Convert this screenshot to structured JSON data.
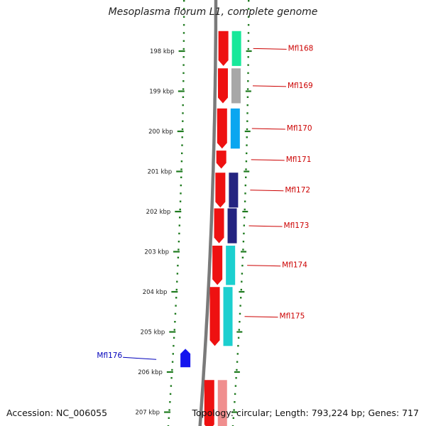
{
  "title": "Mesoplasma florum L1, complete genome",
  "footer": {
    "accession": "Accession: NC_006055",
    "summary": "Topology: circular; Length: 793,224 bp; Genes: 717"
  },
  "colors": {
    "backbone": "#7a7a7a",
    "tick": "#1e7a1e",
    "forward_gene": "#ee1111",
    "reverse_gene": "#1515ee",
    "label_forward": "#cc0000",
    "label_reverse": "#0000bb",
    "cog_green": "#17e89a",
    "cog_gray": "#a8a8a8",
    "cog_sky": "#0aa6f0",
    "cog_navy": "#242480",
    "cog_teal": "#1ccfcf",
    "cog_pink": "#f08e8e"
  },
  "scale": {
    "unit": "kbp",
    "tick_labels": [
      "198 kbp",
      "199 kbp",
      "200 kbp",
      "201 kbp",
      "202 kbp",
      "203 kbp",
      "204 kbp",
      "205 kbp",
      "206 kbp",
      "207 kbp"
    ],
    "tick_values": [
      198,
      199,
      200,
      201,
      202,
      203,
      204,
      205,
      206,
      207
    ]
  },
  "genes": [
    {
      "name": "Mfl168",
      "strand": "+",
      "start_kbp": 197.5,
      "end_kbp": 198.37,
      "cog": "cog_green"
    },
    {
      "name": "Mfl169",
      "strand": "+",
      "start_kbp": 198.43,
      "end_kbp": 199.3,
      "cog": "cog_gray"
    },
    {
      "name": "Mfl170",
      "strand": "+",
      "start_kbp": 199.43,
      "end_kbp": 200.43,
      "cog": "cog_sky"
    },
    {
      "name": "Mfl171",
      "strand": "+",
      "start_kbp": 200.48,
      "end_kbp": 200.93,
      "cog": ""
    },
    {
      "name": "Mfl172",
      "strand": "+",
      "start_kbp": 201.03,
      "end_kbp": 201.9,
      "cog": "cog_navy"
    },
    {
      "name": "Mfl173",
      "strand": "+",
      "start_kbp": 201.92,
      "end_kbp": 202.79,
      "cog": "cog_navy"
    },
    {
      "name": "Mfl174",
      "strand": "+",
      "start_kbp": 202.85,
      "end_kbp": 203.83,
      "cog": "cog_teal"
    },
    {
      "name": "Mfl175",
      "strand": "+",
      "start_kbp": 203.88,
      "end_kbp": 205.35,
      "cog": "cog_teal"
    },
    {
      "name": "Mfl176",
      "strand": "-",
      "start_kbp": 205.42,
      "end_kbp": 205.88,
      "cog": ""
    },
    {
      "name": "",
      "strand": "+",
      "start_kbp": 206.2,
      "end_kbp": 207.45,
      "cog": "cog_pink"
    }
  ]
}
